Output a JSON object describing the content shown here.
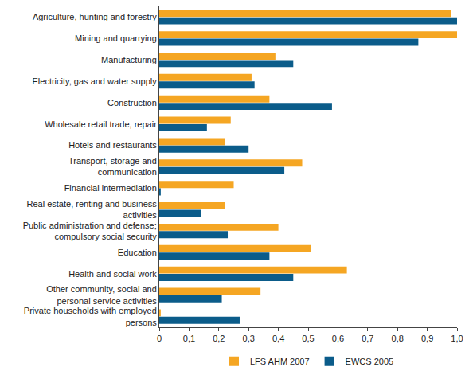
{
  "chart_data": {
    "type": "bar",
    "orientation": "horizontal",
    "categories": [
      "Agriculture, hunting and forestry",
      "Mining and quarrying",
      "Manufacturing",
      "Electricity, gas and water supply",
      "Construction",
      "Wholesale retail trade, repair",
      "Hotels and restaurants",
      "Transport, storage and communication",
      "Financial intermediation",
      "Real estate, renting and business activities",
      "Public administration and defense; compulsory social security",
      "Education",
      "Health and social work",
      "Other community, social and personal service activities",
      "Private households with employed persons"
    ],
    "series": [
      {
        "name": "LFS AHM 2007",
        "color": "#f5a623",
        "values": [
          0.98,
          1.0,
          0.39,
          0.31,
          0.37,
          0.24,
          0.22,
          0.48,
          0.25,
          0.22,
          0.4,
          0.51,
          0.63,
          0.34,
          0.005
        ]
      },
      {
        "name": "EWCS 2005",
        "color": "#0b5c8a",
        "values": [
          1.0,
          0.87,
          0.45,
          0.32,
          0.58,
          0.16,
          0.3,
          0.42,
          0.005,
          0.14,
          0.23,
          0.37,
          0.45,
          0.21,
          0.27
        ]
      }
    ],
    "xlim": [
      0,
      1
    ],
    "xticks": [
      0,
      {
        "value": 0.1,
        "label": "0,1"
      },
      {
        "value": 0.2,
        "label": "0,2"
      },
      {
        "value": 0.3,
        "label": "0,3"
      },
      {
        "value": 0.4,
        "label": "0,4"
      },
      {
        "value": 0.5,
        "label": "0,5"
      },
      {
        "value": 0.6,
        "label": "0,6"
      },
      {
        "value": 0.7,
        "label": "0,7"
      },
      {
        "value": 0.8,
        "label": "0,8"
      },
      {
        "value": 0.9,
        "label": "0,9"
      },
      {
        "value": 1,
        "label": "1,0"
      }
    ],
    "grid": false,
    "legend": "bottom"
  }
}
